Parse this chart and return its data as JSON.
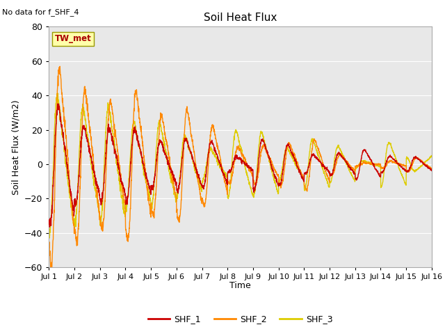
{
  "title": "Soil Heat Flux",
  "ylabel": "Soil Heat Flux (W/m2)",
  "xlabel": "Time",
  "no_data_text": "No data for f_SHF_4",
  "annotation_text": "TW_met",
  "ylim": [
    -60,
    80
  ],
  "yticks": [
    -60,
    -40,
    -20,
    0,
    20,
    40,
    60,
    80
  ],
  "n_days": 15,
  "points_per_day": 144,
  "colors": {
    "SHF_1": "#cc0000",
    "SHF_2": "#ff8800",
    "SHF_3": "#ddcc00"
  },
  "background_color": "#e8e8e8",
  "fig_background": "#ffffff",
  "gridline_color": "#ffffff",
  "linewidth": 1.0
}
